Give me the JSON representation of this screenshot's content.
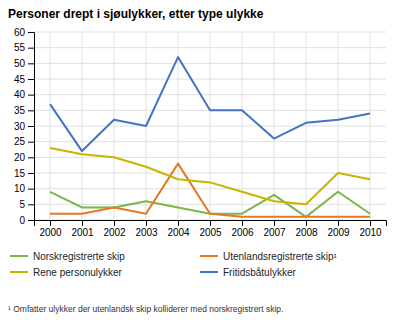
{
  "chart_data": {
    "type": "line",
    "title": "Personer drept i sjøulykker, etter type ulykke",
    "annotations": [
      "¹ Omfatter ulykker der utenlandsk skip kolliderer med norskregistrert skip."
    ],
    "x": [
      2000,
      2001,
      2002,
      2003,
      2004,
      2005,
      2006,
      2007,
      2008,
      2009,
      2010
    ],
    "series": [
      {
        "name": "Norskregistrerte skip",
        "color": "#7ab648",
        "values": [
          9,
          4,
          4,
          6,
          4,
          2,
          2,
          8,
          1,
          9,
          2
        ]
      },
      {
        "name": "Utenlandsregistrerte skip¹",
        "color": "#e87722",
        "values": [
          2,
          2,
          4,
          2,
          18,
          2,
          1,
          1,
          1,
          1,
          1
        ]
      },
      {
        "name": "Rene personulykker",
        "color": "#c8b400",
        "values": [
          23,
          21,
          20,
          17,
          13,
          12,
          9,
          6,
          5,
          15,
          13
        ]
      },
      {
        "name": "Fritidsbåtulykker",
        "color": "#4472c4",
        "values": [
          37,
          22,
          32,
          30,
          52,
          35,
          35,
          26,
          31,
          32,
          34
        ]
      }
    ],
    "xlim": [
      1999.5,
      2010.5
    ],
    "xticks": [
      2000,
      2001,
      2002,
      2003,
      2004,
      2005,
      2006,
      2007,
      2008,
      2009,
      2010
    ],
    "ylim": [
      0,
      60
    ],
    "yticks": [
      0,
      5,
      10,
      15,
      20,
      25,
      30,
      35,
      40,
      45,
      50,
      55,
      60
    ],
    "grid": true,
    "legend": "bottom"
  }
}
